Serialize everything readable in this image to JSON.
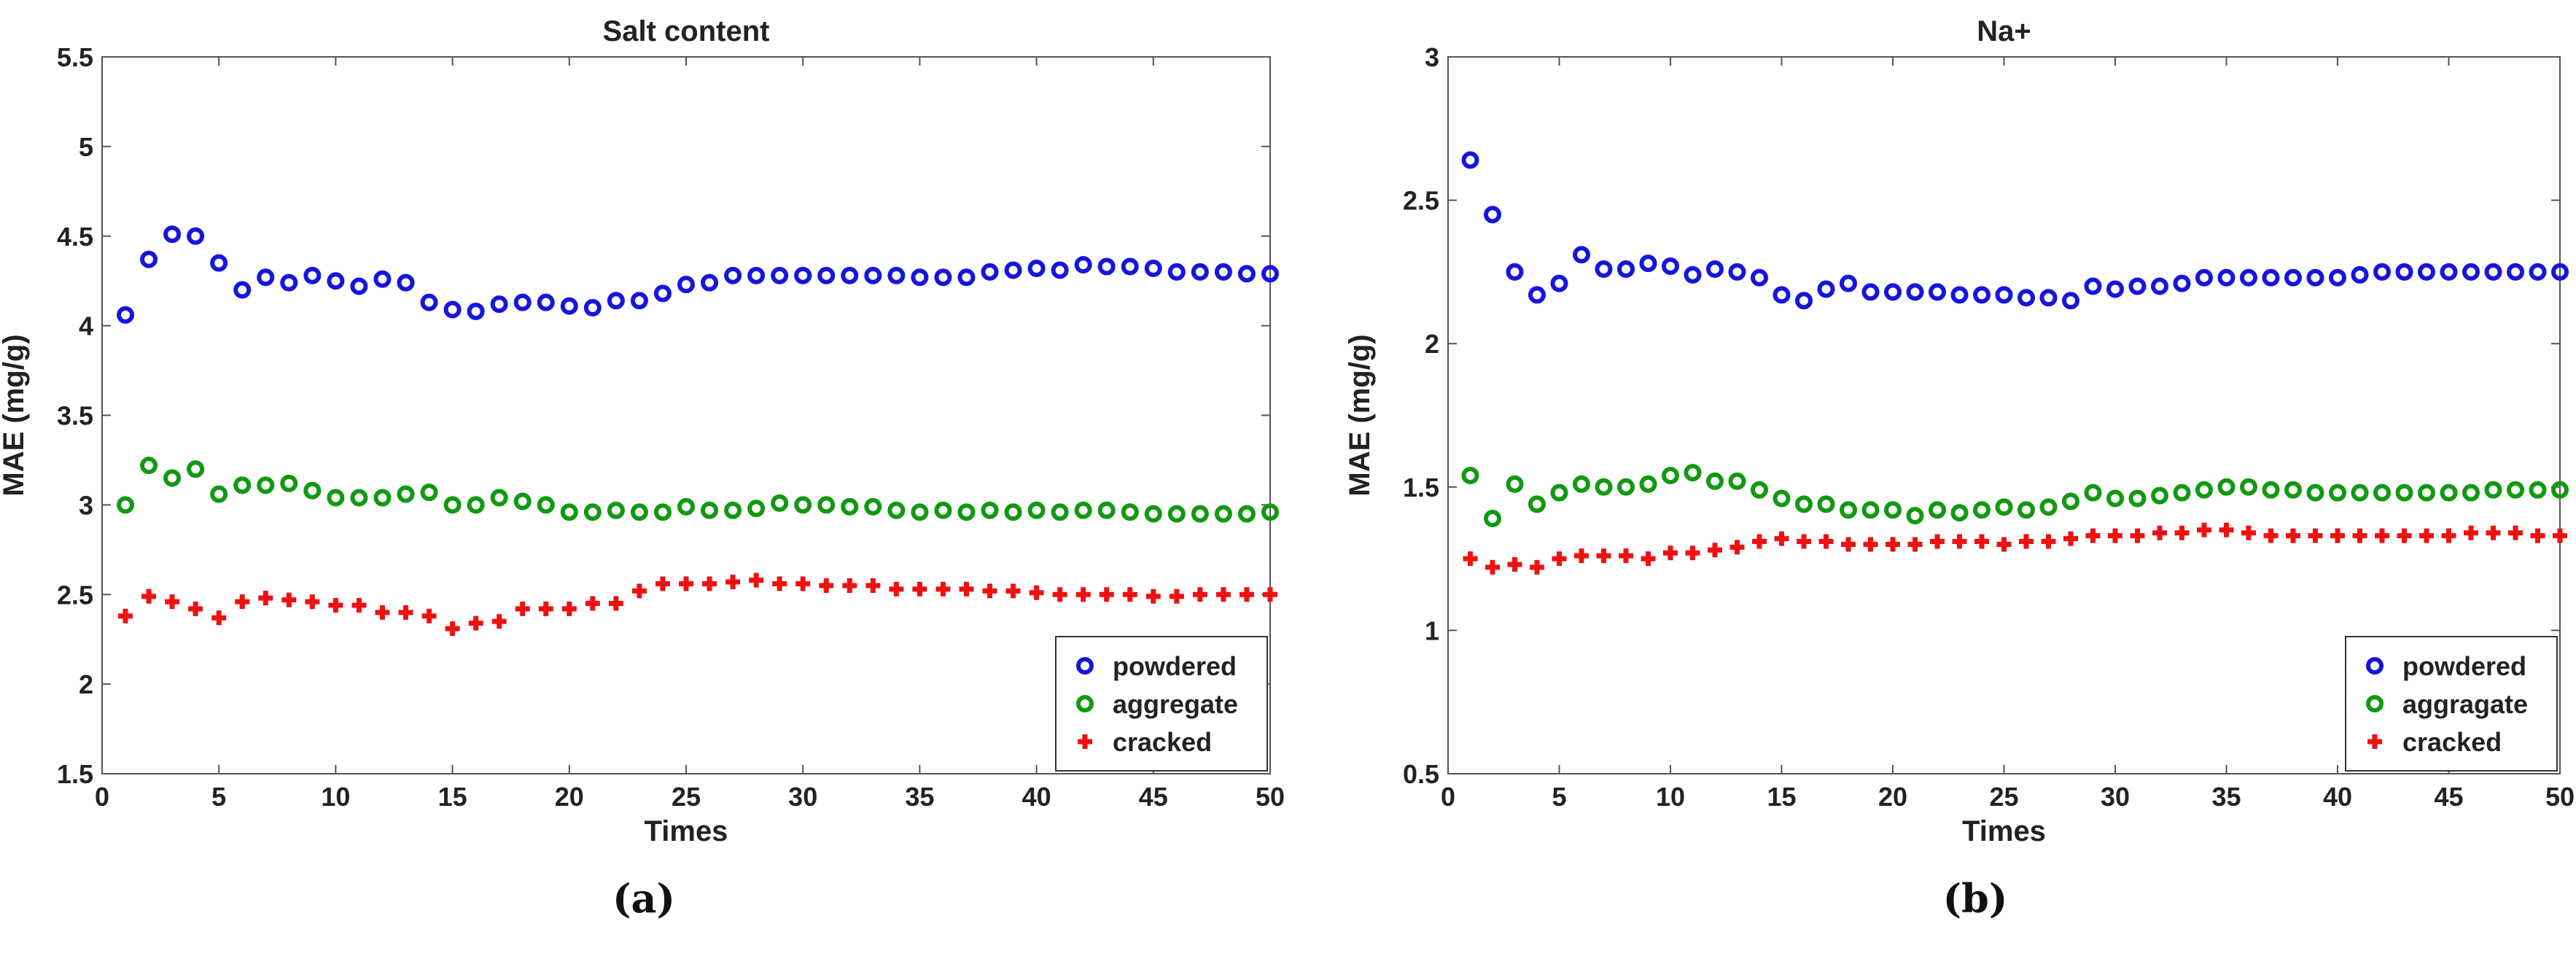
{
  "chart_data": [
    {
      "type": "scatter",
      "title": "Salt content",
      "xlabel": "Times",
      "ylabel": "MAE (mg/g)",
      "xlim": [
        0,
        50
      ],
      "ylim": [
        1.5,
        5.5
      ],
      "xticks": [
        0,
        5,
        10,
        15,
        20,
        25,
        30,
        35,
        40,
        45,
        50
      ],
      "yticks": [
        1.5,
        2,
        2.5,
        3,
        3.5,
        4,
        4.5,
        5,
        5.5
      ],
      "grid": false,
      "legend_position": "bottom-right",
      "caption": "(a)",
      "x": [
        1,
        2,
        3,
        4,
        5,
        6,
        7,
        8,
        9,
        10,
        11,
        12,
        13,
        14,
        15,
        16,
        17,
        18,
        19,
        20,
        21,
        22,
        23,
        24,
        25,
        26,
        27,
        28,
        29,
        30,
        31,
        32,
        33,
        34,
        35,
        36,
        37,
        38,
        39,
        40,
        41,
        42,
        43,
        44,
        45,
        46,
        47,
        48,
        49,
        50
      ],
      "series": [
        {
          "name": "powdered",
          "marker": "circle",
          "color": "#1515e0",
          "values": [
            4.06,
            4.37,
            4.51,
            4.5,
            4.35,
            4.2,
            4.27,
            4.24,
            4.28,
            4.25,
            4.22,
            4.26,
            4.24,
            4.13,
            4.09,
            4.08,
            4.12,
            4.13,
            4.13,
            4.11,
            4.1,
            4.14,
            4.14,
            4.18,
            4.23,
            4.24,
            4.28,
            4.28,
            4.28,
            4.28,
            4.28,
            4.28,
            4.28,
            4.28,
            4.27,
            4.27,
            4.27,
            4.3,
            4.31,
            4.32,
            4.31,
            4.34,
            4.33,
            4.33,
            4.32,
            4.3,
            4.3,
            4.3,
            4.29,
            4.29
          ]
        },
        {
          "name": "aggregate",
          "marker": "circle",
          "color": "#119911",
          "values": [
            3.0,
            3.22,
            3.15,
            3.2,
            3.06,
            3.11,
            3.11,
            3.12,
            3.08,
            3.04,
            3.04,
            3.04,
            3.06,
            3.07,
            3.0,
            3.0,
            3.04,
            3.02,
            3.0,
            2.96,
            2.96,
            2.97,
            2.96,
            2.96,
            2.99,
            2.97,
            2.97,
            2.98,
            3.01,
            3.0,
            3.0,
            2.99,
            2.99,
            2.97,
            2.96,
            2.97,
            2.96,
            2.97,
            2.96,
            2.97,
            2.96,
            2.97,
            2.97,
            2.96,
            2.95,
            2.95,
            2.95,
            2.95,
            2.95,
            2.96
          ]
        },
        {
          "name": "cracked",
          "marker": "plus",
          "color": "#ee1111",
          "values": [
            2.38,
            2.49,
            2.46,
            2.42,
            2.37,
            2.46,
            2.48,
            2.47,
            2.46,
            2.44,
            2.44,
            2.4,
            2.4,
            2.38,
            2.31,
            2.34,
            2.35,
            2.42,
            2.42,
            2.42,
            2.45,
            2.45,
            2.52,
            2.56,
            2.56,
            2.56,
            2.57,
            2.58,
            2.56,
            2.56,
            2.55,
            2.55,
            2.55,
            2.53,
            2.53,
            2.53,
            2.53,
            2.52,
            2.52,
            2.51,
            2.5,
            2.5,
            2.5,
            2.5,
            2.49,
            2.49,
            2.5,
            2.5,
            2.5,
            2.5
          ]
        }
      ]
    },
    {
      "type": "scatter",
      "title": "Na+",
      "xlabel": "Times",
      "ylabel": "MAE (mg/g)",
      "xlim": [
        0,
        50
      ],
      "ylim": [
        0.5,
        3
      ],
      "xticks": [
        0,
        5,
        10,
        15,
        20,
        25,
        30,
        35,
        40,
        45,
        50
      ],
      "yticks": [
        0.5,
        1,
        1.5,
        2,
        2.5,
        3
      ],
      "grid": false,
      "legend_position": "bottom-right",
      "caption": "(b)",
      "x": [
        1,
        2,
        3,
        4,
        5,
        6,
        7,
        8,
        9,
        10,
        11,
        12,
        13,
        14,
        15,
        16,
        17,
        18,
        19,
        20,
        21,
        22,
        23,
        24,
        25,
        26,
        27,
        28,
        29,
        30,
        31,
        32,
        33,
        34,
        35,
        36,
        37,
        38,
        39,
        40,
        41,
        42,
        43,
        44,
        45,
        46,
        47,
        48,
        49,
        50
      ],
      "series": [
        {
          "name": "powdered",
          "marker": "circle",
          "color": "#1515e0",
          "values": [
            2.64,
            2.45,
            2.25,
            2.17,
            2.21,
            2.31,
            2.26,
            2.26,
            2.28,
            2.27,
            2.24,
            2.26,
            2.25,
            2.23,
            2.17,
            2.15,
            2.19,
            2.21,
            2.18,
            2.18,
            2.18,
            2.18,
            2.17,
            2.17,
            2.17,
            2.16,
            2.16,
            2.15,
            2.2,
            2.19,
            2.2,
            2.2,
            2.21,
            2.23,
            2.23,
            2.23,
            2.23,
            2.23,
            2.23,
            2.23,
            2.24,
            2.25,
            2.25,
            2.25,
            2.25,
            2.25,
            2.25,
            2.25,
            2.25,
            2.25
          ]
        },
        {
          "name": "aggragate",
          "marker": "circle",
          "color": "#119911",
          "values": [
            1.54,
            1.39,
            1.51,
            1.44,
            1.48,
            1.51,
            1.5,
            1.5,
            1.51,
            1.54,
            1.55,
            1.52,
            1.52,
            1.49,
            1.46,
            1.44,
            1.44,
            1.42,
            1.42,
            1.42,
            1.4,
            1.42,
            1.41,
            1.42,
            1.43,
            1.42,
            1.43,
            1.45,
            1.48,
            1.46,
            1.46,
            1.47,
            1.48,
            1.49,
            1.5,
            1.5,
            1.49,
            1.49,
            1.48,
            1.48,
            1.48,
            1.48,
            1.48,
            1.48,
            1.48,
            1.48,
            1.49,
            1.49,
            1.49,
            1.49
          ]
        },
        {
          "name": "cracked",
          "marker": "plus",
          "color": "#ee1111",
          "values": [
            1.25,
            1.22,
            1.23,
            1.22,
            1.25,
            1.26,
            1.26,
            1.26,
            1.25,
            1.27,
            1.27,
            1.28,
            1.29,
            1.31,
            1.32,
            1.31,
            1.31,
            1.3,
            1.3,
            1.3,
            1.3,
            1.31,
            1.31,
            1.31,
            1.3,
            1.31,
            1.31,
            1.32,
            1.33,
            1.33,
            1.33,
            1.34,
            1.34,
            1.35,
            1.35,
            1.34,
            1.33,
            1.33,
            1.33,
            1.33,
            1.33,
            1.33,
            1.33,
            1.33,
            1.33,
            1.34,
            1.34,
            1.34,
            1.33,
            1.33
          ]
        }
      ]
    }
  ]
}
